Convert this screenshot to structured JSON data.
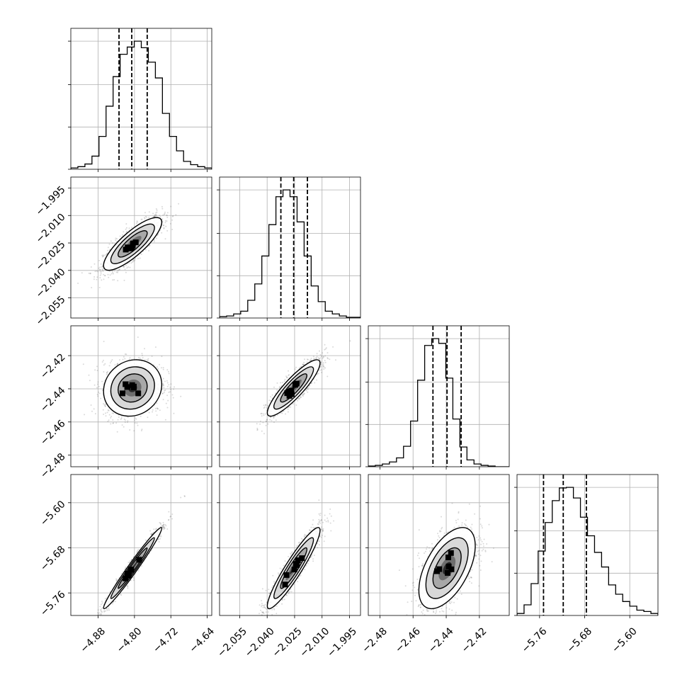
{
  "chart_data": {
    "type": "corner",
    "grid": true,
    "hist_color": "#000000",
    "quantile_line_style": "dashed",
    "params": [
      {
        "range": [
          -4.94,
          -4.63
        ],
        "ticks": [
          -4.88,
          -4.8,
          -4.72,
          -4.64
        ],
        "tick_labels": [
          "−4.88",
          "−4.80",
          "−4.72",
          "−4.64"
        ],
        "quantiles": [
          -4.834,
          -4.806,
          -4.772
        ],
        "hist": [
          2,
          4,
          8,
          20,
          50,
          96,
          141,
          175,
          186,
          195,
          185,
          163,
          139,
          85,
          50,
          28,
          12,
          7,
          4,
          2
        ],
        "mean": -4.804,
        "sd": 0.032
      },
      {
        "range": [
          -2.066,
          -1.989
        ],
        "ticks": [
          -2.055,
          -2.04,
          -2.025,
          -2.01,
          -1.995
        ],
        "tick_labels": [
          "−2.055",
          "−2.040",
          "−2.025",
          "−2.010",
          "−1.995"
        ],
        "quantiles": [
          -2.0325,
          -2.0255,
          -2.018
        ],
        "hist": [
          2,
          3,
          6,
          10,
          26,
          50,
          91,
          137,
          178,
          188,
          178,
          141,
          91,
          47,
          24,
          10,
          6,
          3,
          1,
          1
        ],
        "mean": -2.0255,
        "sd": 0.0072
      },
      {
        "range": [
          -2.487,
          -2.402
        ],
        "ticks": [
          -2.48,
          -2.46,
          -2.44,
          -2.42
        ],
        "tick_labels": [
          "−2.48",
          "−2.46",
          "−2.44",
          "−2.42"
        ],
        "quantiles": [
          -2.448,
          -2.4395,
          -2.431
        ],
        "hist": [
          1,
          2,
          4,
          7,
          13,
          30,
          67,
          127,
          178,
          188,
          181,
          130,
          70,
          29,
          10,
          4,
          2,
          1,
          0,
          0
        ],
        "mean": -2.4395,
        "sd": 0.0085
      },
      {
        "range": [
          -5.8,
          -5.55
        ],
        "ticks": [
          -5.76,
          -5.68,
          -5.6
        ],
        "tick_labels": [
          "−5.76",
          "−5.68",
          "−5.60"
        ],
        "quantiles": [
          -5.753,
          -5.718,
          -5.677
        ],
        "hist": [
          3,
          16,
          48,
          97,
          140,
          173,
          192,
          193,
          177,
          148,
          120,
          95,
          73,
          46,
          32,
          21,
          14,
          8,
          6,
          3
        ],
        "mean": -5.716,
        "sd": 0.036
      }
    ],
    "pairs": [
      {
        "row": 1,
        "col": 0,
        "corr": 0.82
      },
      {
        "row": 2,
        "col": 0,
        "corr": 0.12
      },
      {
        "row": 2,
        "col": 1,
        "corr": 0.88
      },
      {
        "row": 3,
        "col": 0,
        "corr": 0.98
      },
      {
        "row": 3,
        "col": 1,
        "corr": 0.93
      },
      {
        "row": 3,
        "col": 2,
        "corr": 0.55
      }
    ]
  }
}
